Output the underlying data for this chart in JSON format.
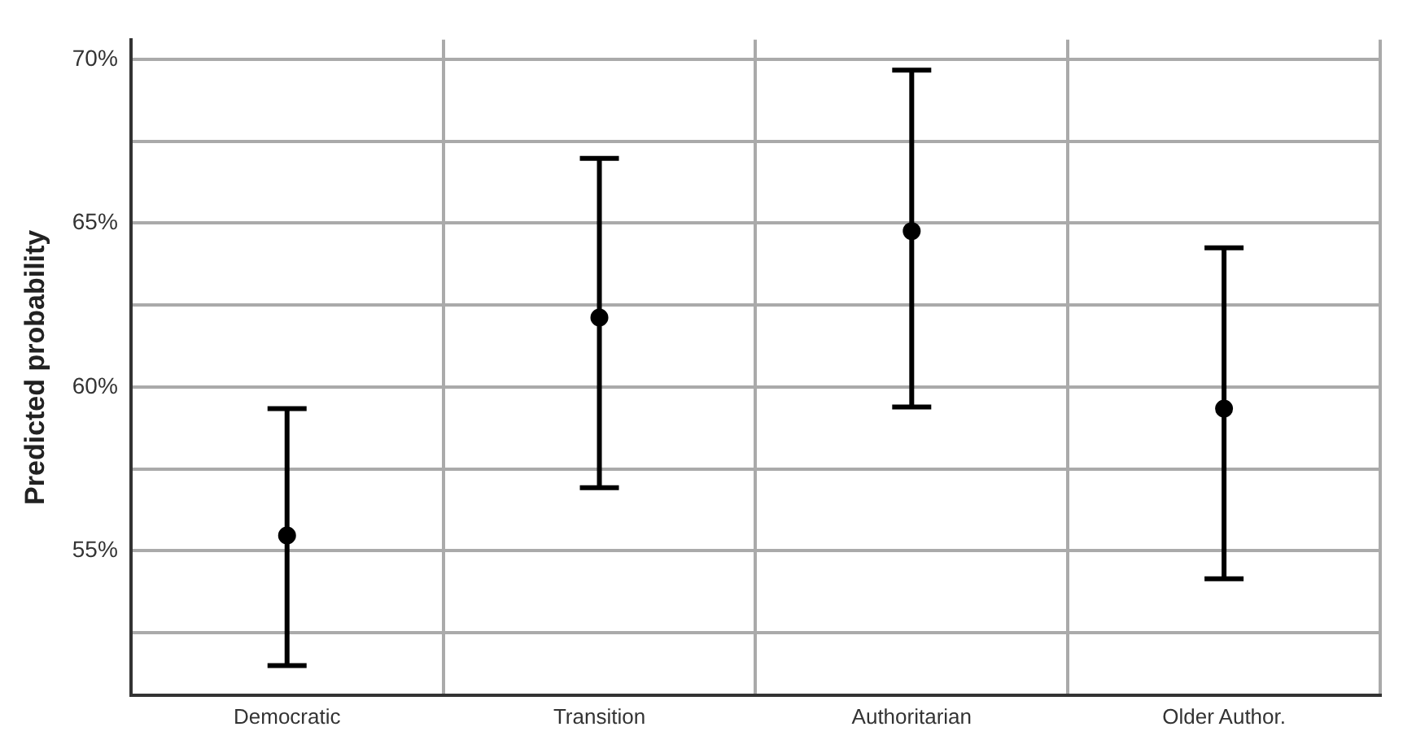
{
  "chart_data": {
    "type": "scatter",
    "ylabel": "Predicted probability",
    "categories": [
      "Democratic",
      "Transition",
      "Authoritarian",
      "Older Author."
    ],
    "values": [
      55.47,
      62.12,
      64.76,
      59.34
    ],
    "errors": [
      [
        51.5,
        59.34
      ],
      [
        56.93,
        66.98
      ],
      [
        59.39,
        69.67
      ],
      [
        54.15,
        64.25
      ]
    ],
    "color": "#000000",
    "marker": "circle",
    "ylim": [
      50.6,
      70.6
    ],
    "yticks": [
      {
        "value": 52.5,
        "label": null
      },
      {
        "value": 55,
        "label": "55%"
      },
      {
        "value": 57.5,
        "label": null
      },
      {
        "value": 60,
        "label": "60%"
      },
      {
        "value": 62.5,
        "label": null
      },
      {
        "value": 65,
        "label": "65%"
      },
      {
        "value": 67.5,
        "label": null
      },
      {
        "value": 70,
        "label": "70%"
      }
    ],
    "grid": true,
    "legend": false
  }
}
